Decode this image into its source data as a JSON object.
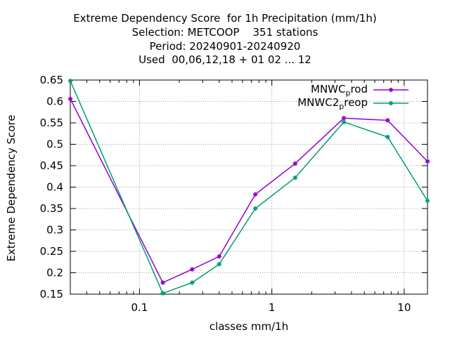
{
  "chart_data": {
    "type": "line",
    "title_lines": [
      "Extreme Dependency Score  for 1h Precipitation (mm/1h)",
      "Selection: METCOOP    351 stations",
      "Period: 20240901-20240920",
      "Used  00,06,12,18 + 01 02 ... 12"
    ],
    "xlabel": "classes mm/1h",
    "ylabel": "Extreme Dependency Score",
    "x_scale": "log",
    "xlim": [
      0.03,
      15
    ],
    "ylim": [
      0.15,
      0.65
    ],
    "x_ticks": [
      "0.1",
      "1",
      "10"
    ],
    "x_tick_values": [
      0.1,
      1,
      10
    ],
    "y_ticks": [
      "0.15",
      "0.2",
      "0.25",
      "0.3",
      "0.35",
      "0.4",
      "0.45",
      "0.5",
      "0.55",
      "0.6",
      "0.65"
    ],
    "y_tick_values": [
      0.15,
      0.2,
      0.25,
      0.3,
      0.35,
      0.4,
      0.45,
      0.5,
      0.55,
      0.6,
      0.65
    ],
    "grid": true,
    "legend_position": "top-right",
    "x": [
      0.03,
      0.15,
      0.25,
      0.4,
      0.75,
      1.5,
      3.5,
      7.5,
      15
    ],
    "series": [
      {
        "name_main": "MNWC",
        "name_sub": "p",
        "name_rest": "rod",
        "color": "#9400d3",
        "values": [
          0.606,
          0.177,
          0.208,
          0.238,
          0.383,
          0.455,
          0.561,
          0.556,
          0.46
        ]
      },
      {
        "name_main": "MNWC2",
        "name_sub": "p",
        "name_rest": "reop",
        "color": "#009e73",
        "values": [
          0.648,
          0.152,
          0.177,
          0.22,
          0.35,
          0.422,
          0.552,
          0.517,
          0.368
        ]
      }
    ]
  }
}
